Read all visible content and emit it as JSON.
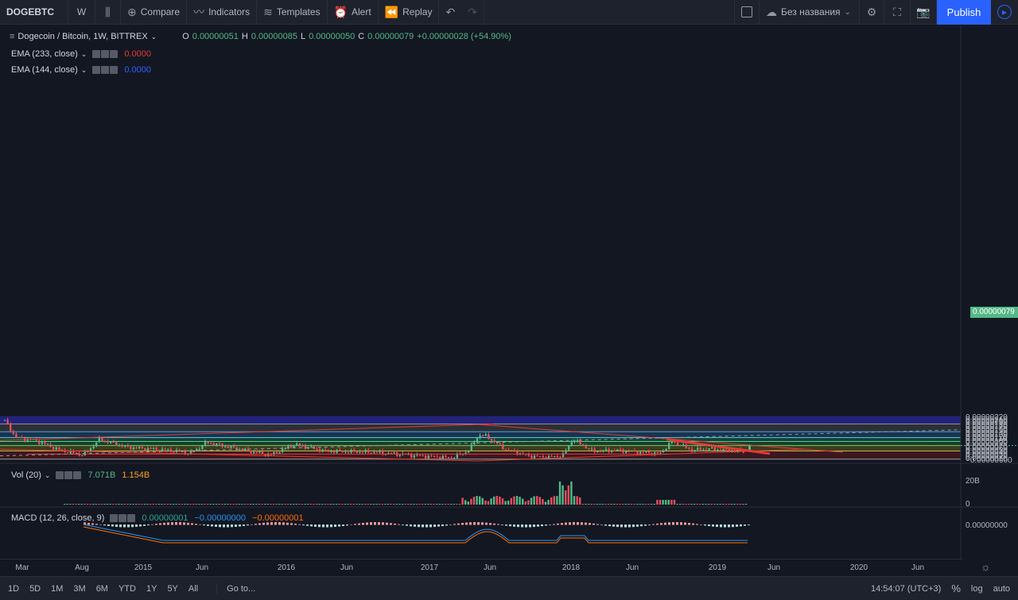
{
  "toolbar": {
    "symbol": "DOGEBTC",
    "interval": "W",
    "compare": "Compare",
    "indicators": "Indicators",
    "templates": "Templates",
    "alert": "Alert",
    "replay": "Replay",
    "layout_name": "Без названия",
    "publish": "Publish"
  },
  "legend": {
    "title": "Dogecoin / Bitcoin, 1W, BITTREX",
    "o_label": "O",
    "o": "0.00000051",
    "h_label": "H",
    "h": "0.00000085",
    "l_label": "L",
    "l": "0.00000050",
    "c_label": "C",
    "c": "0.00000079",
    "change": "+0.00000028 (+54.90%)",
    "ema1": "EMA (233, close)",
    "ema1_val": "0.0000",
    "ema2": "EMA (144, close)",
    "ema2_val": "0.0000",
    "vol": "Vol (20)",
    "vol_val1": "7.071B",
    "vol_val2": "1.154B",
    "macd": "MACD (12, 26, close, 9)",
    "macd_val1": "0.00000001",
    "macd_val2": "−0.00000000",
    "macd_val3": "−0.00000001"
  },
  "price_axis": [
    "0.00000220",
    "0.00000210",
    "0.00000200",
    "0.00000190",
    "0.00000180",
    "0.00000170",
    "0.00000160",
    "0.00000150",
    "0.00000140",
    "0.00000130",
    "0.00000120",
    "0.00000110",
    "0.00000100",
    "0.00000090",
    "0.00000070",
    "0.00000060",
    "0.00000050",
    "0.00000040",
    "0.00000030",
    "0.00000020",
    "0.00000010",
    "−0.00000000"
  ],
  "price_axis_values": [
    2.2,
    2.1,
    2.0,
    1.9,
    1.8,
    1.7,
    1.6,
    1.5,
    1.4,
    1.3,
    1.2,
    1.1,
    1.0,
    0.9,
    0.7,
    0.6,
    0.5,
    0.4,
    0.3,
    0.2,
    0.1,
    0.0
  ],
  "last_price": "0.00000079",
  "vol_axis": [
    "20B",
    "0"
  ],
  "macd_axis": "0.00000000",
  "time_axis": [
    {
      "label": "Mar",
      "x": 28
    },
    {
      "label": "Aug",
      "x": 103
    },
    {
      "label": "2015",
      "x": 180
    },
    {
      "label": "Jun",
      "x": 254
    },
    {
      "label": "2016",
      "x": 360
    },
    {
      "label": "Jun",
      "x": 436
    },
    {
      "label": "2017",
      "x": 540
    },
    {
      "label": "Jun",
      "x": 616
    },
    {
      "label": "2018",
      "x": 718
    },
    {
      "label": "Jun",
      "x": 795
    },
    {
      "label": "2019",
      "x": 902
    },
    {
      "label": "Jun",
      "x": 973
    },
    {
      "label": "2020",
      "x": 1080
    },
    {
      "label": "Jun",
      "x": 1154
    }
  ],
  "ranges": [
    "1D",
    "5D",
    "1M",
    "3M",
    "6M",
    "YTD",
    "1Y",
    "5Y",
    "All"
  ],
  "goto": "Go to...",
  "clock": "14:54:07 (UTC+3)",
  "percent": "%",
  "log": "log",
  "auto": "auto",
  "colors": {
    "up": "#53b987",
    "down": "#eb4d5c",
    "accent": "#2962ff",
    "trend": "#e53935"
  }
}
